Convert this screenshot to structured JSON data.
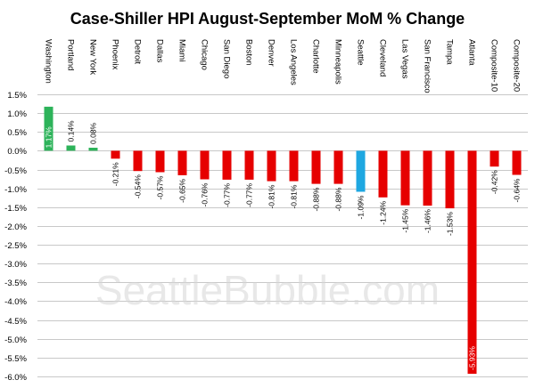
{
  "chart_data": {
    "type": "bar",
    "title": "Case-Shiller HPI August-September MoM % Change",
    "xlabel": "",
    "ylabel": "",
    "ylim": [
      -6.0,
      1.5
    ],
    "ytick_step": 0.5,
    "grid": true,
    "legend": "none",
    "categories": [
      "Washington",
      "Portland",
      "New York",
      "Phoenix",
      "Detroit",
      "Dallas",
      "Miami",
      "Chicago",
      "San Diego",
      "Boston",
      "Denver",
      "Los Angeles",
      "Charlotte",
      "Minneapolis",
      "Seattle",
      "Cleveland",
      "Las Vegas",
      "San Francisco",
      "Tampa",
      "Atlanta",
      "Composite-10",
      "Composite-20"
    ],
    "values": [
      1.17,
      0.14,
      0.08,
      -0.21,
      -0.54,
      -0.57,
      -0.65,
      -0.76,
      -0.77,
      -0.77,
      -0.81,
      -0.81,
      -0.88,
      -0.88,
      -1.09,
      -1.24,
      -1.45,
      -1.46,
      -1.53,
      -5.93,
      -0.42,
      -0.64
    ],
    "data_labels": [
      "1.17%",
      "0.14%",
      "0.08%",
      "-0.21%",
      "-0.54%",
      "-0.57%",
      "-0.65%",
      "-0.76%",
      "-0.77%",
      "-0.77%",
      "-0.81%",
      "-0.81%",
      "-0.88%",
      "-0.88%",
      "-1.09%",
      "-1.24%",
      "-1.45%",
      "-1.46%",
      "-1.53%",
      "-5.93%",
      "-0.42%",
      "-0.64%"
    ],
    "highlight_category": "Seattle",
    "watermark": "SeattleBubble.com",
    "colors": {
      "positive": "#2db35a",
      "negative": "#e60000",
      "highlight": "#1ea7e1",
      "grid": "#c8c8c8"
    }
  }
}
